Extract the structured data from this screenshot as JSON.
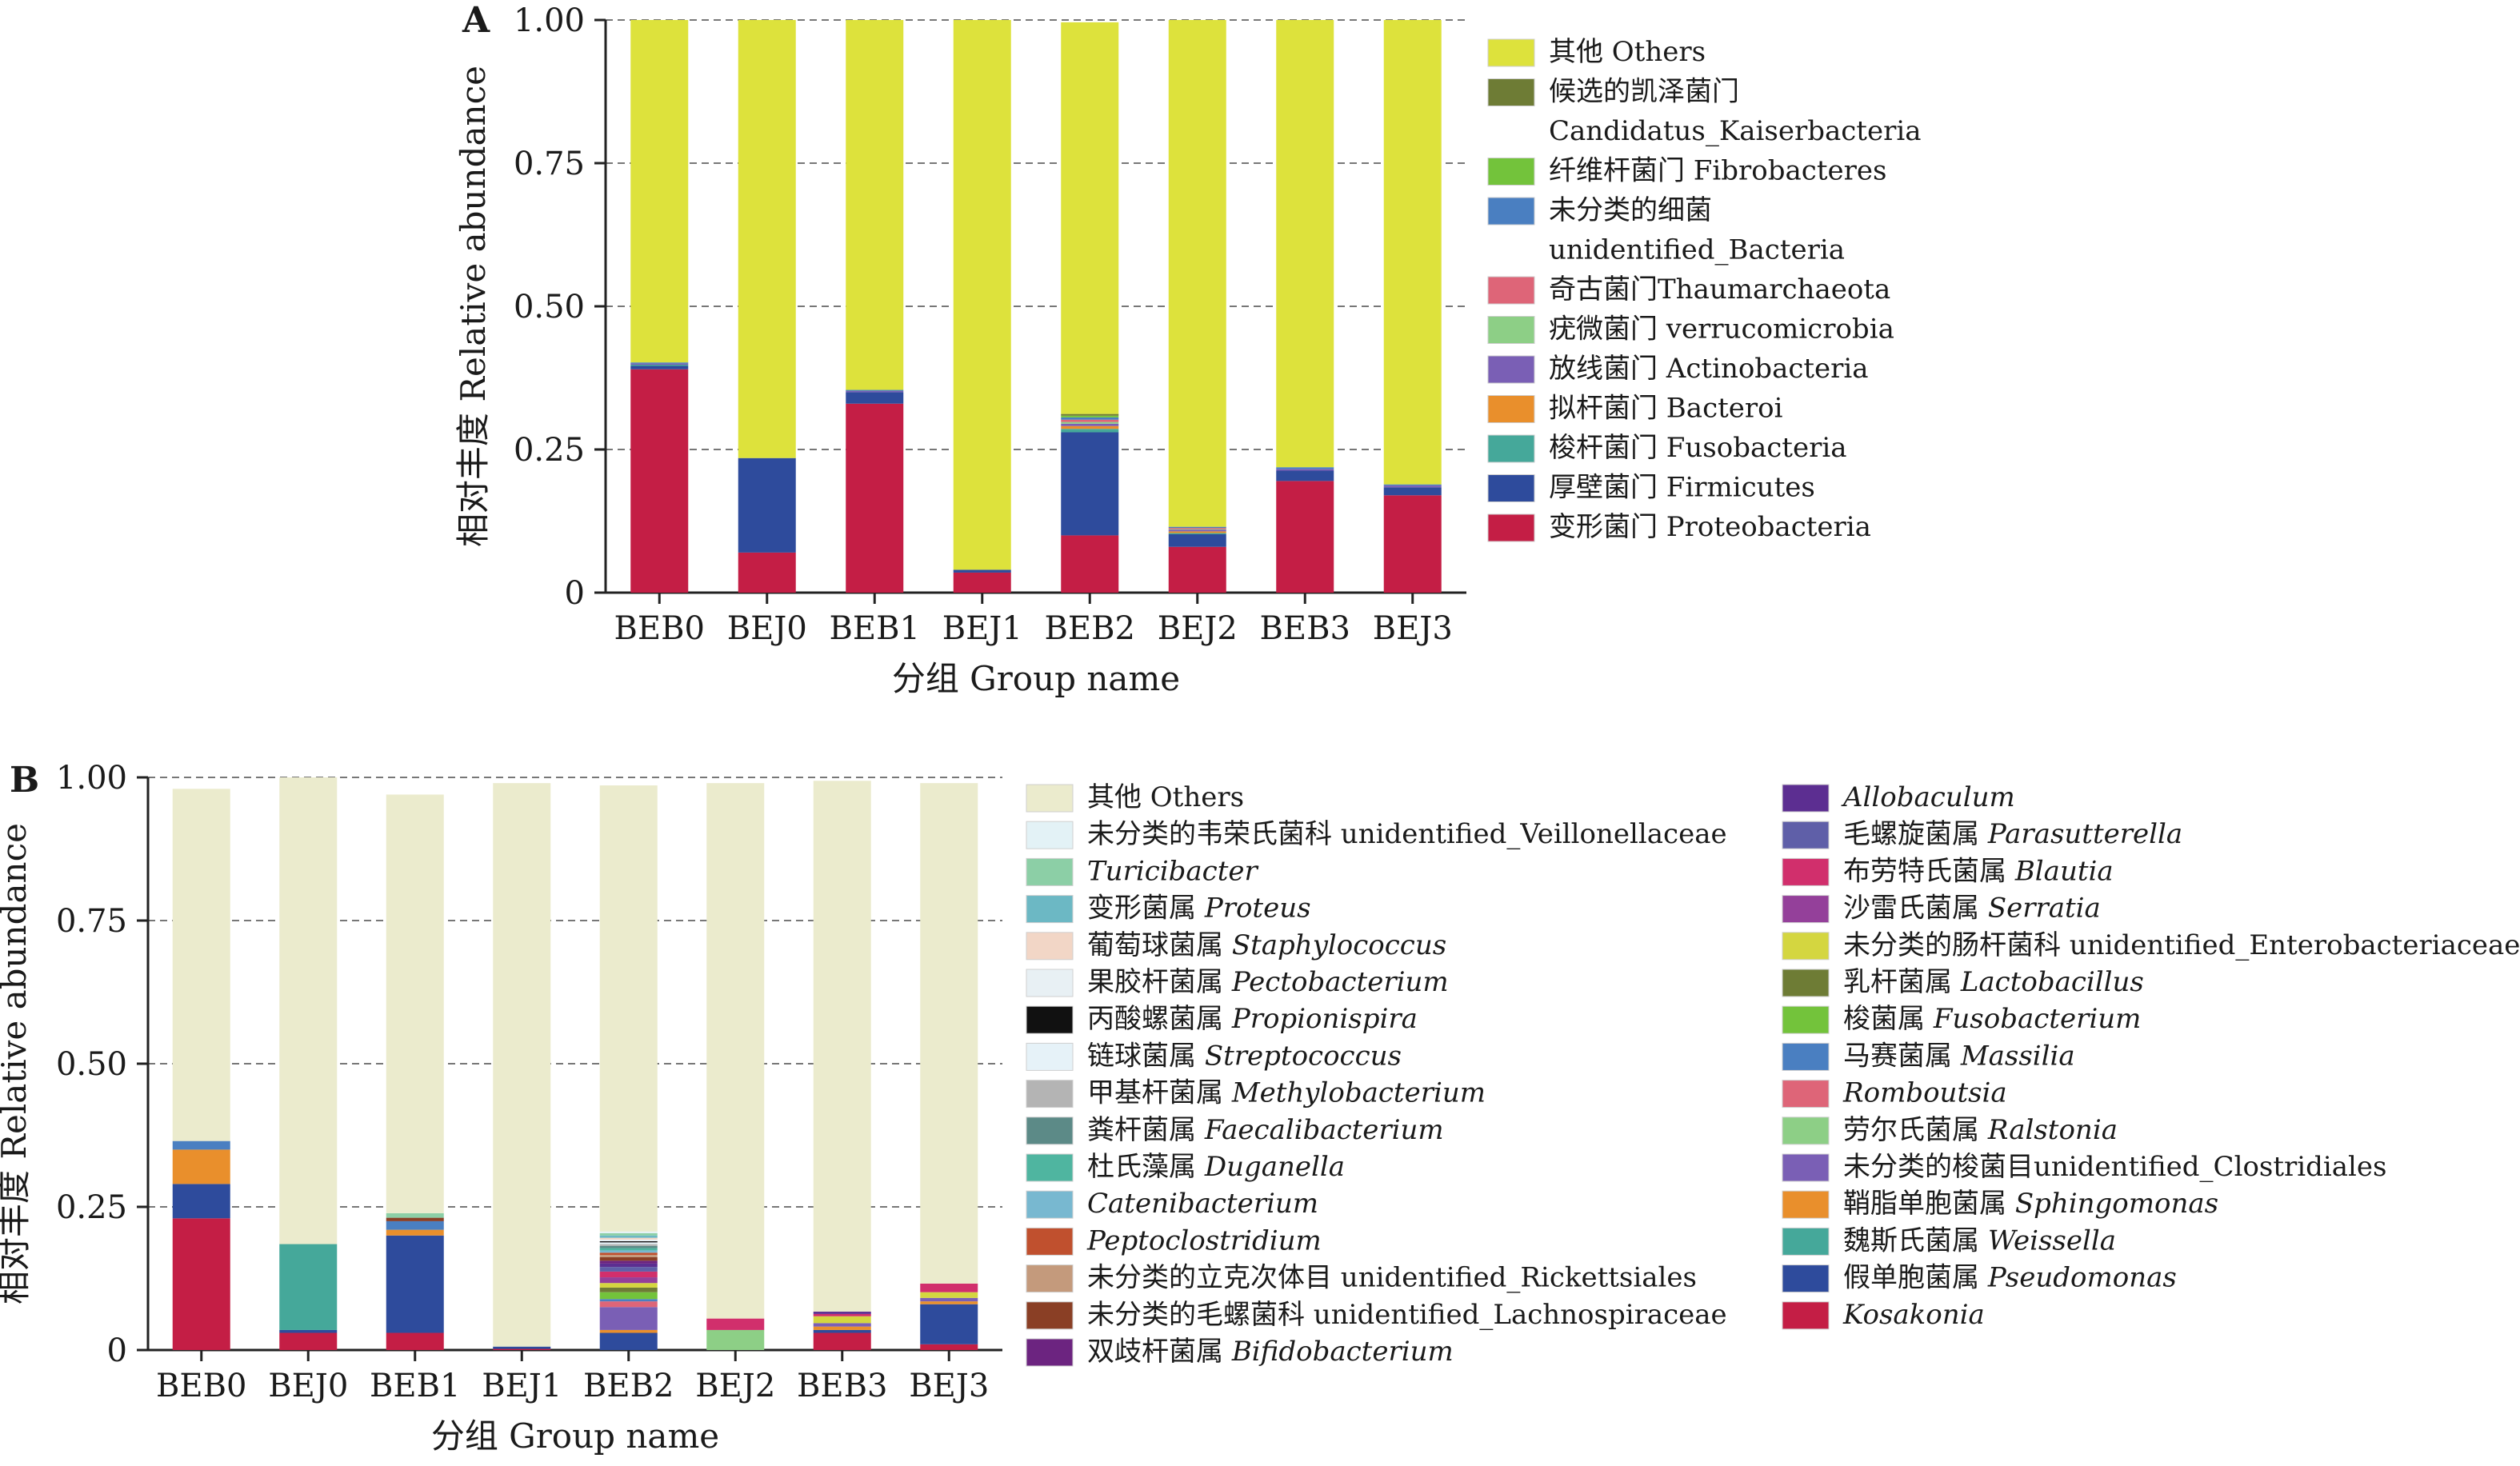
{
  "chart_data": [
    {
      "type": "bar",
      "panel_label": "A",
      "xlabel": "分组 Group name",
      "ylabel": "相对丰度 Relative abundance",
      "ylim": [
        0,
        1
      ],
      "yticks": [
        "0",
        "0.25",
        "0.50",
        "0.75",
        "1.00"
      ],
      "categories": [
        "BEB0",
        "BEJ0",
        "BEB1",
        "BEJ1",
        "BEB2",
        "BEJ2",
        "BEB3",
        "BEJ3"
      ],
      "stacked": true,
      "grid": "dashed horizontal",
      "legend_position": "right",
      "series": [
        {
          "name": "变形菌门 Proteobacteria",
          "color": "#c41e45",
          "values": [
            0.39,
            0.07,
            0.33,
            0.035,
            0.1,
            0.08,
            0.195,
            0.17
          ]
        },
        {
          "name": "厚壁菌门 Firmicutes",
          "color": "#2e4b9c",
          "values": [
            0.006,
            0.165,
            0.02,
            0.005,
            0.18,
            0.022,
            0.018,
            0.014
          ]
        },
        {
          "name": "梭杆菌门 Fusobacteria",
          "color": "#45a89a",
          "values": [
            0.002,
            0.0,
            0.0,
            0.0,
            0.006,
            0.002,
            0.0,
            0.0
          ]
        },
        {
          "name": "拟杆菌门 Bacteroi",
          "color": "#e98f2c",
          "values": [
            0.0,
            0.0,
            0.0,
            0.0,
            0.005,
            0.003,
            0.0,
            0.0
          ]
        },
        {
          "name": "放线菌门 Actinobacteria",
          "color": "#7a5fb5",
          "values": [
            0.002,
            0.0,
            0.002,
            0.0,
            0.004,
            0.003,
            0.003,
            0.003
          ]
        },
        {
          "name": "疣微菌门 verrucomicrobia",
          "color": "#8dcf86",
          "values": [
            0.0,
            0.0,
            0.0,
            0.0,
            0.003,
            0.001,
            0.0,
            0.0
          ]
        },
        {
          "name": "奇古菌门Thaumarchaeota",
          "color": "#de6578",
          "values": [
            0.0,
            0.0,
            0.0,
            0.0,
            0.004,
            0.002,
            0.0,
            0.0
          ]
        },
        {
          "name": "未分类的细菌 unidentified_Bacteria",
          "color": "#4a7fc1",
          "values": [
            0.002,
            0.0,
            0.002,
            0.0,
            0.004,
            0.002,
            0.003,
            0.002
          ]
        },
        {
          "name": "纤维杆菌门 Fibrobacteres",
          "color": "#73c33b",
          "values": [
            0.0,
            0.0,
            0.0,
            0.0,
            0.003,
            0.0,
            0.0,
            0.0
          ]
        },
        {
          "name": "候选的凯泽菌门 Candidatus_Kaiserbacteria",
          "color": "#6e7c35",
          "values": [
            0.0,
            0.0,
            0.0,
            0.0,
            0.003,
            0.0,
            0.0,
            0.0
          ]
        },
        {
          "name": "其他 Others",
          "color": "#dde23c",
          "values": [
            0.598,
            0.765,
            0.646,
            0.96,
            0.684,
            0.885,
            0.781,
            0.811
          ]
        }
      ]
    },
    {
      "type": "bar",
      "panel_label": "B",
      "xlabel": "分组 Group name",
      "ylabel": "相对丰度 Relative abundance",
      "ylim": [
        0,
        1
      ],
      "yticks": [
        "0",
        "0.25",
        "0.50",
        "0.75",
        "1.00"
      ],
      "categories": [
        "BEB0",
        "BEJ0",
        "BEB1",
        "BEJ1",
        "BEB2",
        "BEJ2",
        "BEB3",
        "BEJ3"
      ],
      "stacked": true,
      "grid": "dashed horizontal",
      "legend_position": "right",
      "series": [
        {
          "name": "Kosakonia",
          "italic": true,
          "color": "#c41e45",
          "values": [
            0.23,
            0.03,
            0.03,
            0.002,
            0.0,
            0.0,
            0.03,
            0.01
          ]
        },
        {
          "name": "假单胞菌属 Pseudomonas",
          "italic": true,
          "color": "#2e4b9c",
          "values": [
            0.06,
            0.005,
            0.17,
            0.004,
            0.03,
            0.0,
            0.005,
            0.07
          ]
        },
        {
          "name": "魏斯氏菌属 Weissella",
          "italic": true,
          "color": "#45a89a",
          "values": [
            0.0,
            0.15,
            0.0,
            0.0,
            0.0,
            0.0,
            0.0,
            0.0
          ]
        },
        {
          "name": "鞘脂单胞菌属 Sphingomonas",
          "italic": true,
          "color": "#e98f2c",
          "values": [
            0.06,
            0.0,
            0.01,
            0.0,
            0.005,
            0.0,
            0.006,
            0.005
          ]
        },
        {
          "name": "未分类的梭菌目unidentified_Clostridiales",
          "color": "#7a5fb5",
          "values": [
            0.0,
            0.0,
            0.0,
            0.0,
            0.04,
            0.0,
            0.006,
            0.006
          ]
        },
        {
          "name": "劳尔氏菌属 Ralstonia",
          "italic": true,
          "color": "#8dcf86",
          "values": [
            0.0,
            0.0,
            0.0,
            0.0,
            0.0,
            0.035,
            0.0,
            0.0
          ]
        },
        {
          "name": "Romboutsia",
          "italic": true,
          "color": "#de6578",
          "values": [
            0.0,
            0.0,
            0.0,
            0.0,
            0.01,
            0.0,
            0.0,
            0.0
          ]
        },
        {
          "name": "马赛菌属 Massilia",
          "italic": true,
          "color": "#4a7fc1",
          "values": [
            0.015,
            0.0,
            0.015,
            0.0,
            0.004,
            0.0,
            0.0,
            0.0
          ]
        },
        {
          "name": "梭菌属 Fusobacterium",
          "italic": true,
          "color": "#73c33b",
          "values": [
            0.0,
            0.0,
            0.0,
            0.0,
            0.012,
            0.0,
            0.0,
            0.0
          ]
        },
        {
          "name": "乳杆菌属 Lactobacillus",
          "italic": true,
          "color": "#6e7c35",
          "values": [
            0.0,
            0.0,
            0.0,
            0.0,
            0.008,
            0.0,
            0.0,
            0.0
          ]
        },
        {
          "name": "未分类的肠杆菌科 unidentified_Enterobacteriaceae",
          "color": "#d4d640",
          "values": [
            0.0,
            0.0,
            0.0,
            0.0,
            0.008,
            0.0,
            0.012,
            0.01
          ]
        },
        {
          "name": "沙雷氏菌属 Serratia",
          "italic": true,
          "color": "#94409a",
          "values": [
            0.0,
            0.0,
            0.0,
            0.0,
            0.01,
            0.0,
            0.0,
            0.0
          ]
        },
        {
          "name": "布劳特氏菌属 Blautia",
          "italic": true,
          "color": "#d12f6c",
          "values": [
            0.0,
            0.0,
            0.0,
            0.0,
            0.01,
            0.02,
            0.004,
            0.015
          ]
        },
        {
          "name": "毛螺旋菌属 Parasutterella",
          "italic": true,
          "color": "#5f5fa8",
          "values": [
            0.0,
            0.0,
            0.0,
            0.0,
            0.008,
            0.0,
            0.0,
            0.0
          ]
        },
        {
          "name": "Allobaculum",
          "italic": true,
          "color": "#5c2e91",
          "values": [
            0.0,
            0.0,
            0.0,
            0.0,
            0.006,
            0.0,
            0.004,
            0.0
          ]
        },
        {
          "name": "双歧杆菌属 Bifidobacterium",
          "italic": true,
          "color": "#6c2480",
          "values": [
            0.0,
            0.0,
            0.0,
            0.0,
            0.005,
            0.0,
            0.0,
            0.0
          ]
        },
        {
          "name": "未分类的毛螺菌科 unidentified_Lachnospiraceae",
          "color": "#8a3f25",
          "values": [
            0.0,
            0.0,
            0.006,
            0.0,
            0.006,
            0.0,
            0.0,
            0.0
          ]
        },
        {
          "name": "未分类的立克次体目 unidentified_Rickettsiales",
          "color": "#c49a7c",
          "values": [
            0.0,
            0.0,
            0.0,
            0.0,
            0.004,
            0.0,
            0.0,
            0.0
          ]
        },
        {
          "name": "Peptoclostridium",
          "italic": true,
          "color": "#c0502e",
          "values": [
            0.0,
            0.0,
            0.0,
            0.0,
            0.004,
            0.0,
            0.0,
            0.0
          ]
        },
        {
          "name": "Catenibacterium",
          "italic": true,
          "color": "#78b8d0",
          "values": [
            0.0,
            0.0,
            0.0,
            0.0,
            0.004,
            0.0,
            0.0,
            0.0
          ]
        },
        {
          "name": "杜氏藻属 Duganella",
          "italic": true,
          "color": "#4fb5a0",
          "values": [
            0.0,
            0.0,
            0.0,
            0.0,
            0.004,
            0.0,
            0.0,
            0.0
          ]
        },
        {
          "name": "粪杆菌属 Faecalibacterium",
          "italic": true,
          "color": "#5c8a87",
          "values": [
            0.0,
            0.0,
            0.0,
            0.0,
            0.004,
            0.0,
            0.0,
            0.0
          ]
        },
        {
          "name": "甲基杆菌属 Methylobacterium",
          "italic": true,
          "color": "#b4b4b4",
          "values": [
            0.0,
            0.0,
            0.0,
            0.0,
            0.003,
            0.0,
            0.0,
            0.0
          ]
        },
        {
          "name": "链球菌属 Streptococcus",
          "italic": true,
          "color": "#e6f2f8",
          "values": [
            0.0,
            0.0,
            0.0,
            0.0,
            0.003,
            0.0,
            0.0,
            0.0
          ]
        },
        {
          "name": "丙酸螺菌属 Propionispira",
          "italic": true,
          "color": "#111111",
          "values": [
            0.0,
            0.0,
            0.0,
            0.0,
            0.002,
            0.0,
            0.0,
            0.0
          ]
        },
        {
          "name": "果胶杆菌属 Pectobacterium",
          "italic": true,
          "color": "#e8f0f4",
          "values": [
            0.0,
            0.0,
            0.0,
            0.0,
            0.003,
            0.0,
            0.0,
            0.0
          ]
        },
        {
          "name": "葡萄球菌属 Staphylococcus",
          "italic": true,
          "color": "#f2d6c6",
          "values": [
            0.0,
            0.0,
            0.0,
            0.0,
            0.003,
            0.0,
            0.0,
            0.0
          ]
        },
        {
          "name": "变形菌属 Proteus",
          "italic": true,
          "color": "#6cb8c4",
          "values": [
            0.0,
            0.0,
            0.0,
            0.0,
            0.004,
            0.0,
            0.0,
            0.0
          ]
        },
        {
          "name": "Turicibacter",
          "italic": true,
          "color": "#8ccfa6",
          "values": [
            0.0,
            0.0,
            0.008,
            0.0,
            0.004,
            0.0,
            0.0,
            0.0
          ]
        },
        {
          "name": "未分类的韦荣氏菌科 unidentified_Veillonellaceae",
          "color": "#e3f2f6",
          "values": [
            0.0,
            0.0,
            0.0,
            0.0,
            0.003,
            0.0,
            0.0,
            0.0
          ]
        },
        {
          "name": "其他 Others",
          "color": "#ebebcd",
          "values": [
            0.615,
            0.815,
            0.731,
            0.984,
            0.779,
            0.935,
            0.927,
            0.874
          ]
        }
      ]
    }
  ]
}
